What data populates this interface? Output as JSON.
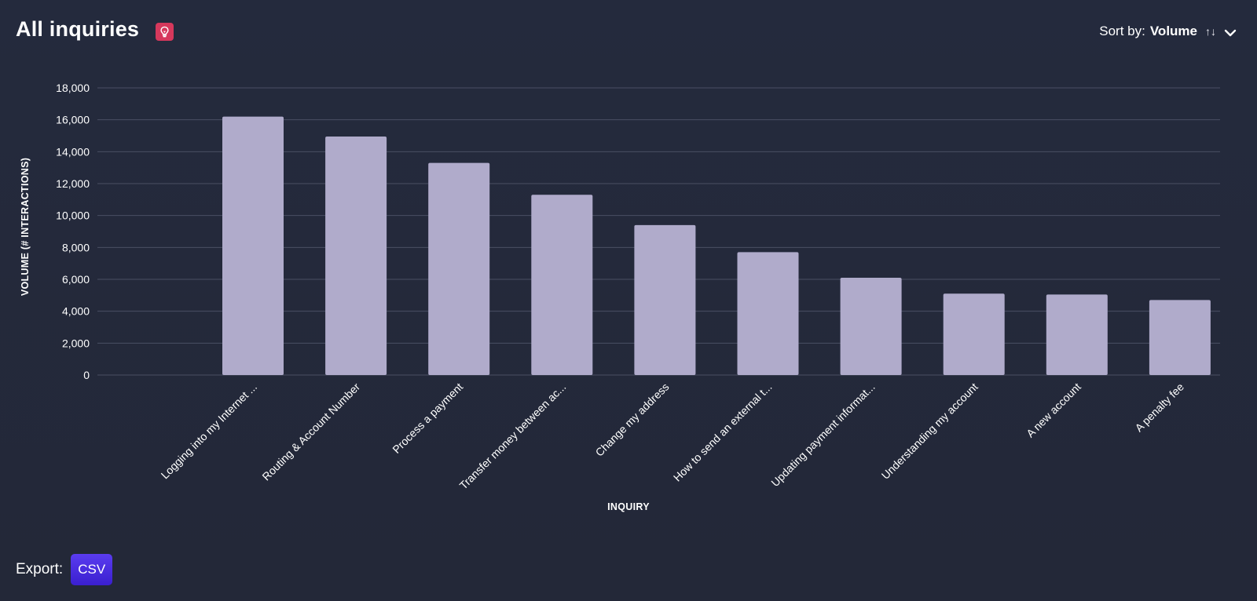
{
  "header": {
    "title": "All inquiries",
    "sort_label": "Sort by:",
    "sort_value": "Volume",
    "sort_arrows": "↑↓"
  },
  "export": {
    "label": "Export:",
    "csv_label": "CSV"
  },
  "colors": {
    "background": "#242a3c",
    "bar": "#b0abcb",
    "grid": "#4a4f63",
    "bulb_badge": "#d6385c",
    "csv_button": "#4a2ee0"
  },
  "chart_data": {
    "type": "bar",
    "xlabel": "INQUIRY",
    "ylabel": "VOLUME (# INTERACTIONS)",
    "ylim": [
      0,
      18000
    ],
    "yticks": [
      "0",
      "2,000",
      "4,000",
      "6,000",
      "8,000",
      "10,000",
      "12,000",
      "14,000",
      "16,000",
      "18,000"
    ],
    "grid": true,
    "categories": [
      "Logging into my Internet ...",
      "Routing & Account Number",
      "Process a payment",
      "Transfer money between ac...",
      "Change my address",
      "How to send an external t...",
      "Updating payment informat...",
      "Understanding my account",
      "A new account",
      "A penalty fee"
    ],
    "values": [
      16200,
      14950,
      13300,
      11300,
      9400,
      7700,
      6100,
      5100,
      5050,
      4700
    ]
  }
}
